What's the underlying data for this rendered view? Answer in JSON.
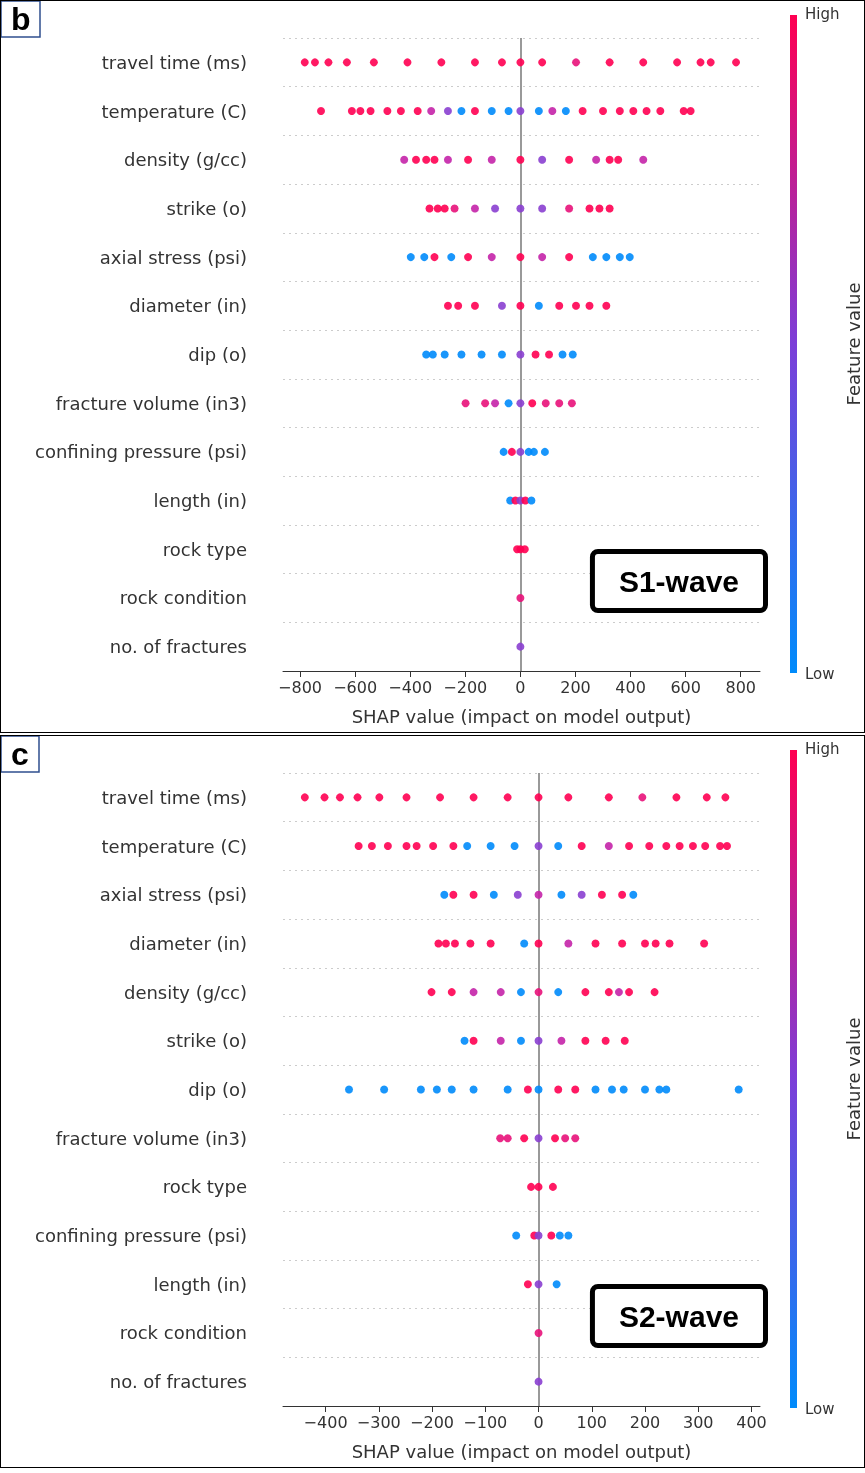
{
  "chart_data": [
    {
      "type": "scatter",
      "title": "b",
      "orientation": "horizontal",
      "xlabel": "SHAP value (impact on model output)",
      "clabel": "Feature value",
      "categories": [
        "travel time (ms)",
        "temperature (C)",
        "density (g/cc)",
        "strike (o)",
        "axial stress (psi)",
        "diameter (in)",
        "dip (o)",
        "fracture volume (in3)",
        "confining pressure (psi)",
        "length (in)",
        "rock type",
        "rock condition",
        "no. of fractures"
      ],
      "xlim": [
        -862,
        870
      ],
      "xticks": [
        -800,
        -600,
        -400,
        -200,
        0,
        200,
        400,
        600,
        800
      ],
      "grid": "y",
      "marker": "circle",
      "ref_lines": [
        {
          "axis": "x",
          "value": 0,
          "color": "#999999"
        }
      ],
      "annotations": [
        "S1-wave",
        "High",
        "Low"
      ],
      "series": [
        {
          "x": [
            "travel time (ms)",
            "travel time (ms)",
            "travel time (ms)",
            "travel time (ms)",
            "travel time (ms)",
            "travel time (ms)",
            "travel time (ms)",
            "travel time (ms)",
            "travel time (ms)",
            "travel time (ms)",
            "travel time (ms)",
            "travel time (ms)",
            "travel time (ms)",
            "travel time (ms)",
            "travel time (ms)",
            "travel time (ms)",
            "travel time (ms)",
            "travel time (ms)"
          ],
          "values": [
            -783,
            -746,
            -697,
            -630,
            -532,
            -410,
            -287,
            -165,
            -67,
            0,
            79,
            202,
            324,
            446,
            569,
            654,
            691,
            783
          ],
          "colors": [
            "#ff0052",
            "#ff0052",
            "#ff0052",
            "#ff0052",
            "#ff0052",
            "#ff0052",
            "#ff0052",
            "#ff0052",
            "#ff0052",
            "#ff0052",
            "#ff0052",
            "#e8127a",
            "#ff0052",
            "#ff0052",
            "#ff0052",
            "#ff0052",
            "#ff0052",
            "#ff0052"
          ]
        },
        {
          "x": [
            "temperature (C)",
            "temperature (C)",
            "temperature (C)",
            "temperature (C)",
            "temperature (C)",
            "temperature (C)",
            "temperature (C)",
            "temperature (C)",
            "temperature (C)",
            "temperature (C)",
            "temperature (C)",
            "temperature (C)",
            "temperature (C)",
            "temperature (C)",
            "temperature (C)",
            "temperature (C)",
            "temperature (C)",
            "temperature (C)",
            "temperature (C)",
            "temperature (C)",
            "temperature (C)",
            "temperature (C)",
            "temperature (C)",
            "temperature (C)",
            "temperature (C)"
          ],
          "values": [
            -724,
            -612,
            -581,
            -544,
            -483,
            -434,
            -373,
            -324,
            -263,
            -214,
            -165,
            -104,
            -43,
            0,
            67,
            116,
            165,
            226,
            300,
            361,
            410,
            458,
            508,
            593,
            618
          ],
          "colors": [
            "#ff0052",
            "#ff0052",
            "#ff0052",
            "#ff0052",
            "#ff0052",
            "#ff0052",
            "#ff0052",
            "#c423a8",
            "#8a3fd0",
            "#008bfb",
            "#ff0052",
            "#008bfb",
            "#008bfb",
            "#8a3fd0",
            "#008bfb",
            "#c423a8",
            "#008bfb",
            "#ff0052",
            "#ff0052",
            "#ff0052",
            "#ff0052",
            "#ff0052",
            "#ff0052",
            "#ff0052",
            "#ff0052"
          ]
        },
        {
          "x": [
            "density (g/cc)",
            "density (g/cc)",
            "density (g/cc)",
            "density (g/cc)",
            "density (g/cc)",
            "density (g/cc)",
            "density (g/cc)",
            "density (g/cc)",
            "density (g/cc)",
            "density (g/cc)",
            "density (g/cc)",
            "density (g/cc)",
            "density (g/cc)",
            "density (g/cc)"
          ],
          "values": [
            -422,
            -379,
            -342,
            -312,
            -263,
            -190,
            -104,
            0,
            79,
            177,
            275,
            324,
            355,
            446
          ],
          "colors": [
            "#c423a8",
            "#ff0052",
            "#ff0052",
            "#ff0052",
            "#c423a8",
            "#ff0052",
            "#c423a8",
            "#ff0052",
            "#8a3fd0",
            "#ff0052",
            "#c423a8",
            "#ff0052",
            "#ff0052",
            "#c423a8"
          ]
        },
        {
          "x": [
            "strike (o)",
            "strike (o)",
            "strike (o)",
            "strike (o)",
            "strike (o)",
            "strike (o)",
            "strike (o)",
            "strike (o)",
            "strike (o)",
            "strike (o)",
            "strike (o)",
            "strike (o)"
          ],
          "values": [
            -330,
            -300,
            -275,
            -239,
            -165,
            -92,
            0,
            79,
            177,
            251,
            287,
            324
          ],
          "colors": [
            "#ff0052",
            "#ff0052",
            "#ff0052",
            "#e8127a",
            "#c423a8",
            "#8a3fd0",
            "#8a3fd0",
            "#8a3fd0",
            "#e8127a",
            "#ff0052",
            "#ff0052",
            "#ff0052"
          ]
        },
        {
          "x": [
            "axial stress (psi)",
            "axial stress (psi)",
            "axial stress (psi)",
            "axial stress (psi)",
            "axial stress (psi)",
            "axial stress (psi)",
            "axial stress (psi)",
            "axial stress (psi)",
            "axial stress (psi)",
            "axial stress (psi)",
            "axial stress (psi)",
            "axial stress (psi)",
            "axial stress (psi)"
          ],
          "values": [
            -398,
            -349,
            -312,
            -251,
            -190,
            -104,
            0,
            79,
            177,
            263,
            312,
            361,
            397
          ],
          "colors": [
            "#008bfb",
            "#008bfb",
            "#ff0052",
            "#008bfb",
            "#ff0052",
            "#c423a8",
            "#ff0052",
            "#c423a8",
            "#ff0052",
            "#008bfb",
            "#008bfb",
            "#008bfb",
            "#008bfb"
          ]
        },
        {
          "x": [
            "diameter (in)",
            "diameter (in)",
            "diameter (in)",
            "diameter (in)",
            "diameter (in)",
            "diameter (in)",
            "diameter (in)",
            "diameter (in)",
            "diameter (in)",
            "diameter (in)"
          ],
          "values": [
            -263,
            -226,
            -165,
            -67,
            0,
            67,
            141,
            202,
            251,
            312
          ],
          "colors": [
            "#ff0052",
            "#ff0052",
            "#ff0052",
            "#8a3fd0",
            "#ff0052",
            "#008bfb",
            "#ff0052",
            "#ff0052",
            "#ff0052",
            "#ff0052"
          ]
        },
        {
          "x": [
            "dip (o)",
            "dip (o)",
            "dip (o)",
            "dip (o)",
            "dip (o)",
            "dip (o)",
            "dip (o)",
            "dip (o)",
            "dip (o)",
            "dip (o)",
            "dip (o)"
          ],
          "values": [
            -342,
            -318,
            -275,
            -214,
            -141,
            -67,
            0,
            55,
            104,
            153,
            190
          ],
          "colors": [
            "#008bfb",
            "#008bfb",
            "#008bfb",
            "#008bfb",
            "#008bfb",
            "#008bfb",
            "#8a3fd0",
            "#ff0052",
            "#ff0052",
            "#008bfb",
            "#008bfb"
          ]
        },
        {
          "x": [
            "fracture volume (in3)",
            "fracture volume (in3)",
            "fracture volume (in3)",
            "fracture volume (in3)",
            "fracture volume (in3)",
            "fracture volume (in3)",
            "fracture volume (in3)",
            "fracture volume (in3)",
            "fracture volume (in3)"
          ],
          "values": [
            -199,
            -128,
            -92,
            -43,
            0,
            43,
            92,
            141,
            187
          ],
          "colors": [
            "#e8127a",
            "#e8127a",
            "#c423a8",
            "#008bfb",
            "#8a3fd0",
            "#ff0052",
            "#e8127a",
            "#e8127a",
            "#e8127a"
          ]
        },
        {
          "x": [
            "confining pressure (psi)",
            "confining pressure (psi)",
            "confining pressure (psi)",
            "confining pressure (psi)",
            "confining pressure (psi)",
            "confining pressure (psi)"
          ],
          "values": [
            -61,
            -31,
            0,
            30,
            49,
            89
          ],
          "colors": [
            "#008bfb",
            "#ff0052",
            "#8a3fd0",
            "#008bfb",
            "#008bfb",
            "#008bfb"
          ]
        },
        {
          "x": [
            "length (in)",
            "length (in)",
            "length (in)",
            "length (in)",
            "length (in)"
          ],
          "values": [
            -37,
            -18,
            0,
            18,
            40
          ],
          "colors": [
            "#008bfb",
            "#ff0052",
            "#8a3fd0",
            "#ff0052",
            "#008bfb"
          ]
        },
        {
          "x": [
            "rock type",
            "rock type",
            "rock type"
          ],
          "values": [
            -12,
            0,
            16
          ],
          "color": "#ff0052"
        },
        {
          "x": [
            "rock condition"
          ],
          "values": [
            0
          ],
          "color": "#e8127a"
        },
        {
          "x": [
            "no. of fractures"
          ],
          "values": [
            0
          ],
          "color": "#8a3fd0"
        }
      ]
    },
    {
      "type": "scatter",
      "title": "c",
      "orientation": "horizontal",
      "xlabel": "SHAP value (impact on model output)",
      "clabel": "Feature value",
      "categories": [
        "travel time (ms)",
        "temperature (C)",
        "axial stress (psi)",
        "diameter (in)",
        "density (g/cc)",
        "strike (o)",
        "dip (o)",
        "fracture volume (in3)",
        "rock type",
        "confining pressure (psi)",
        "length (in)",
        "rock condition",
        "no. of fractures"
      ],
      "xlim": [
        -480,
        416
      ],
      "xticks": [
        -400,
        -300,
        -200,
        -100,
        0,
        100,
        200,
        300,
        400
      ],
      "grid": "y",
      "marker": "circle",
      "ref_lines": [
        {
          "axis": "x",
          "value": 0,
          "color": "#999999"
        }
      ],
      "annotations": [
        "S2-wave",
        "High",
        "Low"
      ],
      "series": [
        {
          "x": [
            "travel time (ms)",
            "travel time (ms)",
            "travel time (ms)",
            "travel time (ms)",
            "travel time (ms)",
            "travel time (ms)",
            "travel time (ms)",
            "travel time (ms)",
            "travel time (ms)",
            "travel time (ms)",
            "travel time (ms)",
            "travel time (ms)",
            "travel time (ms)",
            "travel time (ms)",
            "travel time (ms)",
            "travel time (ms)"
          ],
          "values": [
            -439,
            -402,
            -373,
            -340,
            -299,
            -248,
            -185,
            -122,
            -58,
            0,
            56,
            132,
            195,
            259,
            316,
            351
          ],
          "colors": [
            "#ff0052",
            "#ff0052",
            "#ff0052",
            "#ff0052",
            "#ff0052",
            "#ff0052",
            "#ff0052",
            "#ff0052",
            "#ff0052",
            "#ff0052",
            "#ff0052",
            "#ff0052",
            "#e8127a",
            "#ff0052",
            "#ff0052",
            "#ff0052"
          ]
        },
        {
          "x": [
            "temperature (C)",
            "temperature (C)",
            "temperature (C)",
            "temperature (C)",
            "temperature (C)",
            "temperature (C)",
            "temperature (C)",
            "temperature (C)",
            "temperature (C)",
            "temperature (C)",
            "temperature (C)",
            "temperature (C)",
            "temperature (C)",
            "temperature (C)",
            "temperature (C)",
            "temperature (C)",
            "temperature (C)",
            "temperature (C)",
            "temperature (C)",
            "temperature (C)",
            "temperature (C)",
            "temperature (C)"
          ],
          "values": [
            -338,
            -313,
            -283,
            -248,
            -229,
            -198,
            -160,
            -134,
            -90,
            -45,
            0,
            37,
            81,
            132,
            170,
            208,
            240,
            265,
            290,
            313,
            341,
            354
          ],
          "colors": [
            "#ff0052",
            "#ff0052",
            "#ff0052",
            "#ff0052",
            "#ff0052",
            "#ff0052",
            "#ff0052",
            "#008bfb",
            "#008bfb",
            "#008bfb",
            "#8a3fd0",
            "#008bfb",
            "#ff0052",
            "#c423a8",
            "#ff0052",
            "#ff0052",
            "#ff0052",
            "#ff0052",
            "#ff0052",
            "#ff0052",
            "#ff0052",
            "#ff0052"
          ]
        },
        {
          "x": [
            "axial stress (psi)",
            "axial stress (psi)",
            "axial stress (psi)",
            "axial stress (psi)",
            "axial stress (psi)",
            "axial stress (psi)",
            "axial stress (psi)",
            "axial stress (psi)",
            "axial stress (psi)",
            "axial stress (psi)",
            "axial stress (psi)"
          ],
          "values": [
            -177,
            -160,
            -122,
            -84,
            -39,
            0,
            43,
            81,
            119,
            157,
            178
          ],
          "colors": [
            "#008bfb",
            "#ff0052",
            "#ff0052",
            "#008bfb",
            "#8a3fd0",
            "#c423a8",
            "#008bfb",
            "#8a3fd0",
            "#ff0052",
            "#ff0052",
            "#008bfb"
          ]
        },
        {
          "x": [
            "diameter (in)",
            "diameter (in)",
            "diameter (in)",
            "diameter (in)",
            "diameter (in)",
            "diameter (in)",
            "diameter (in)",
            "diameter (in)",
            "diameter (in)",
            "diameter (in)",
            "diameter (in)",
            "diameter (in)",
            "diameter (in)",
            "diameter (in)"
          ],
          "values": [
            -188,
            -174,
            -157,
            -128,
            -90,
            -27,
            0,
            56,
            107,
            157,
            200,
            220,
            246,
            311
          ],
          "colors": [
            "#ff0052",
            "#ff0052",
            "#ff0052",
            "#ff0052",
            "#ff0052",
            "#008bfb",
            "#ff0052",
            "#c423a8",
            "#ff0052",
            "#ff0052",
            "#ff0052",
            "#ff0052",
            "#ff0052",
            "#ff0052"
          ]
        },
        {
          "x": [
            "density (g/cc)",
            "density (g/cc)",
            "density (g/cc)",
            "density (g/cc)",
            "density (g/cc)",
            "density (g/cc)",
            "density (g/cc)",
            "density (g/cc)",
            "density (g/cc)",
            "density (g/cc)",
            "density (g/cc)",
            "density (g/cc)"
          ],
          "values": [
            -201,
            -163,
            -122,
            -71,
            -33,
            0,
            37,
            88,
            132,
            151,
            170,
            218
          ],
          "colors": [
            "#ff0052",
            "#ff0052",
            "#c423a8",
            "#c423a8",
            "#008bfb",
            "#e8127a",
            "#008bfb",
            "#ff0052",
            "#ff0052",
            "#c423a8",
            "#ff0052",
            "#ff0052"
          ]
        },
        {
          "x": [
            "strike (o)",
            "strike (o)",
            "strike (o)",
            "strike (o)",
            "strike (o)",
            "strike (o)",
            "strike (o)",
            "strike (o)",
            "strike (o)"
          ],
          "values": [
            -139,
            -122,
            -71,
            -33,
            0,
            43,
            88,
            126,
            162
          ],
          "colors": [
            "#008bfb",
            "#ff0052",
            "#c423a8",
            "#008bfb",
            "#8a3fd0",
            "#c423a8",
            "#ff0052",
            "#ff0052",
            "#ff0052"
          ]
        },
        {
          "x": [
            "dip (o)",
            "dip (o)",
            "dip (o)",
            "dip (o)",
            "dip (o)",
            "dip (o)",
            "dip (o)",
            "dip (o)",
            "dip (o)",
            "dip (o)",
            "dip (o)",
            "dip (o)",
            "dip (o)",
            "dip (o)",
            "dip (o)",
            "dip (o)",
            "dip (o)",
            "dip (o)"
          ],
          "values": [
            -356,
            -290,
            -221,
            -191,
            -163,
            -122,
            -58,
            -20,
            0,
            37,
            69,
            107,
            138,
            160,
            200,
            227,
            240,
            376
          ],
          "colors": [
            "#008bfb",
            "#008bfb",
            "#008bfb",
            "#008bfb",
            "#008bfb",
            "#008bfb",
            "#008bfb",
            "#ff0052",
            "#008bfb",
            "#ff0052",
            "#ff0052",
            "#008bfb",
            "#008bfb",
            "#008bfb",
            "#008bfb",
            "#008bfb",
            "#008bfb",
            "#008bfb"
          ]
        },
        {
          "x": [
            "fracture volume (in3)",
            "fracture volume (in3)",
            "fracture volume (in3)",
            "fracture volume (in3)",
            "fracture volume (in3)",
            "fracture volume (in3)",
            "fracture volume (in3)"
          ],
          "values": [
            -72,
            -58,
            -27,
            0,
            31,
            50,
            69
          ],
          "colors": [
            "#e8127a",
            "#e8127a",
            "#ff0052",
            "#8a3fd0",
            "#ff0052",
            "#e8127a",
            "#e8127a"
          ]
        },
        {
          "x": [
            "rock type",
            "rock type",
            "rock type"
          ],
          "values": [
            -14,
            0,
            27
          ],
          "color": "#ff0052"
        },
        {
          "x": [
            "confining pressure (psi)",
            "confining pressure (psi)",
            "confining pressure (psi)",
            "confining pressure (psi)",
            "confining pressure (psi)",
            "confining pressure (psi)"
          ],
          "values": [
            -42,
            -8,
            0,
            24,
            40,
            56
          ],
          "colors": [
            "#008bfb",
            "#ff0052",
            "#8a3fd0",
            "#ff0052",
            "#008bfb",
            "#008bfb"
          ]
        },
        {
          "x": [
            "length (in)",
            "length (in)",
            "length (in)"
          ],
          "values": [
            -20,
            0,
            34
          ],
          "colors": [
            "#ff0052",
            "#8a3fd0",
            "#008bfb"
          ]
        },
        {
          "x": [
            "rock condition"
          ],
          "values": [
            0
          ],
          "color": "#e8127a"
        },
        {
          "x": [
            "no. of fractures"
          ],
          "values": [
            0
          ],
          "color": "#8a3fd0"
        }
      ]
    }
  ]
}
